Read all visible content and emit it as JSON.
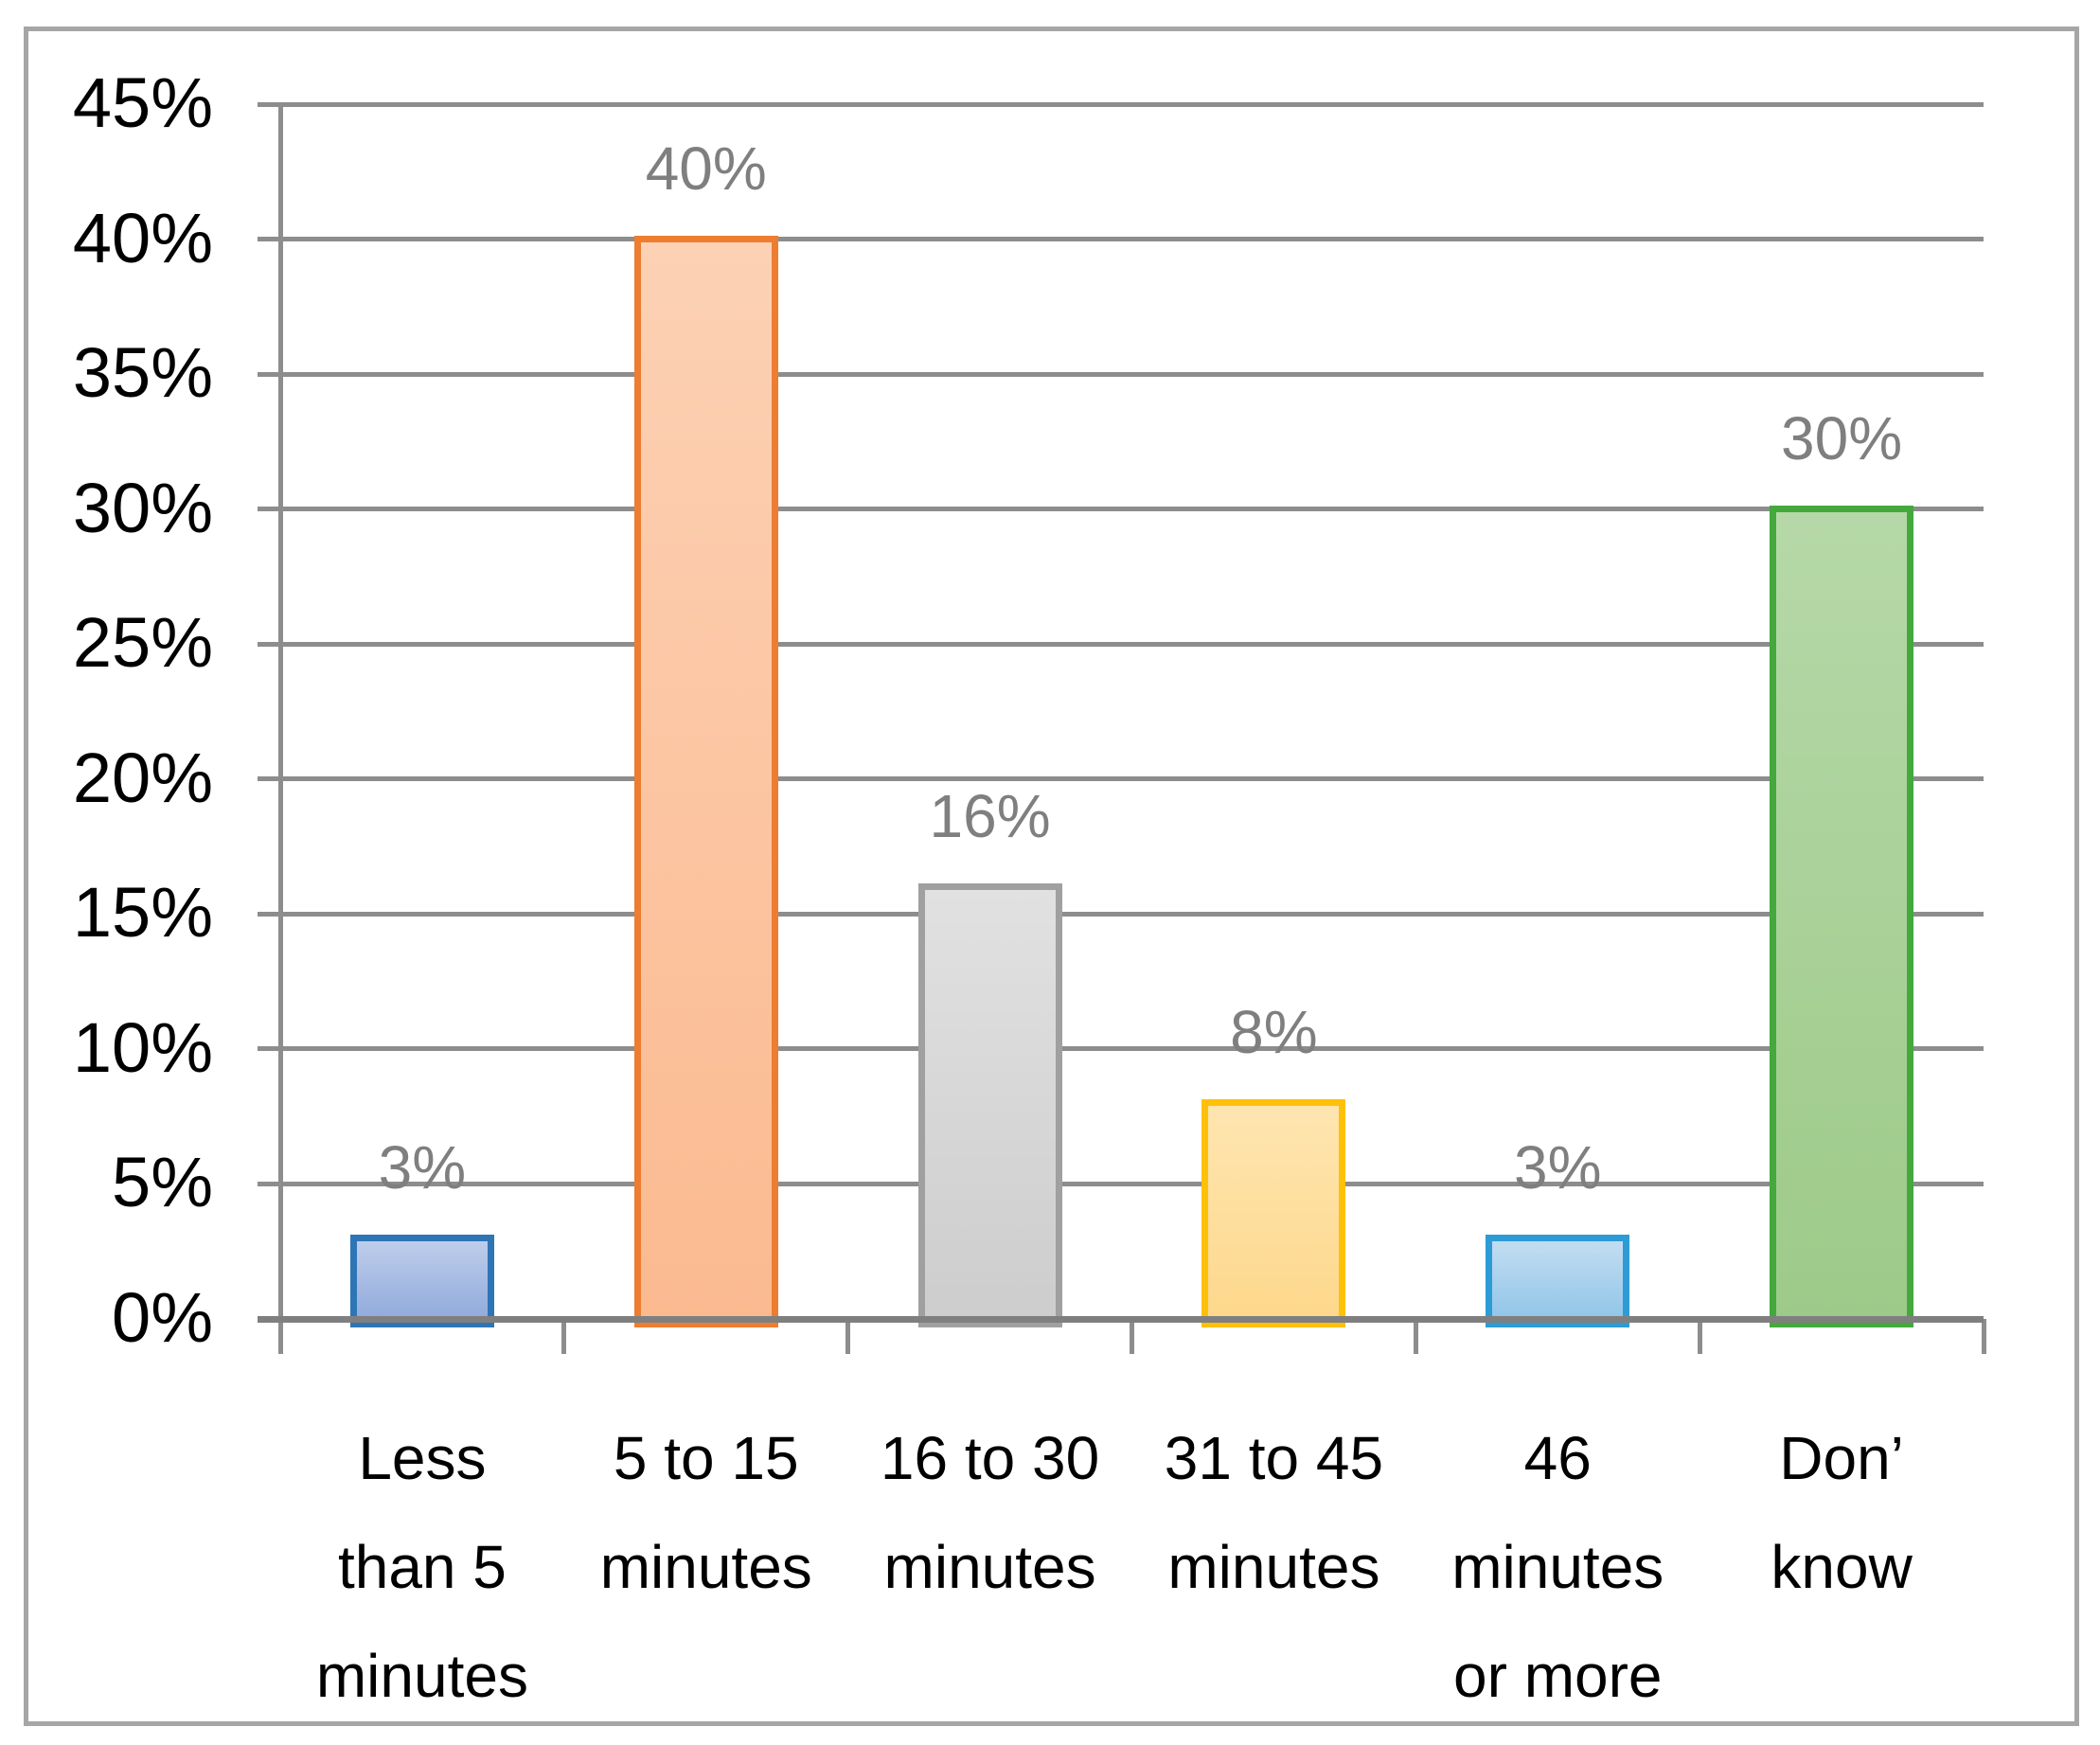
{
  "chart_data": {
    "type": "bar",
    "title": "",
    "xlabel": "",
    "ylabel": "",
    "categories": [
      "Less than 5 minutes",
      "5 to 15 minutes",
      "16 to 30 minutes",
      "31 to 45 minutes",
      "46 minutes or more",
      "Don’ know"
    ],
    "category_lines": [
      [
        "Less",
        "than 5",
        "minutes"
      ],
      [
        "5 to 15",
        "minutes"
      ],
      [
        "16 to 30",
        "minutes"
      ],
      [
        "31 to 45",
        "minutes"
      ],
      [
        "46",
        "minutes",
        "or more"
      ],
      [
        "Don’",
        "know"
      ]
    ],
    "values": [
      3,
      40,
      16,
      8,
      3,
      30
    ],
    "data_labels": [
      "3%",
      "40%",
      "16%",
      "8%",
      "3%",
      "30%"
    ],
    "y_tick_labels": [
      "0%",
      "5%",
      "10%",
      "15%",
      "20%",
      "25%",
      "30%",
      "35%",
      "40%",
      "45%"
    ],
    "ylim": [
      0,
      45
    ],
    "y_step": 5,
    "grid": true,
    "legend": false,
    "bar_styles": [
      {
        "name": "less-than-5-minutes",
        "border": "#2E75B6",
        "fill_top": "#BECDEB",
        "fill_bottom": "#90AADB"
      },
      {
        "name": "5-to-15-minutes",
        "border": "#ED7D31",
        "fill_top": "#FCD1B4",
        "fill_bottom": "#FBBA90"
      },
      {
        "name": "16-to-30-minutes",
        "border": "#A0A0A0",
        "fill_top": "#E1E1E1",
        "fill_bottom": "#CDCDCD"
      },
      {
        "name": "31-to-45-minutes",
        "border": "#FFC008",
        "fill_top": "#FEE5B0",
        "fill_bottom": "#FDD88B"
      },
      {
        "name": "46-minutes-or-more",
        "border": "#2D9BD5",
        "fill_top": "#C3DDF1",
        "fill_bottom": "#8FC5E8"
      },
      {
        "name": "dont-know",
        "border": "#44A93C",
        "fill_top": "#B6D8A8",
        "fill_bottom": "#9DCA89"
      }
    ],
    "colors": {
      "gridline": "#8D8D8D",
      "axis_line": "#8D8D8D",
      "baseline": "#7F7F7F",
      "frame_border": "#A6A6A6",
      "y_label_text": "#000000",
      "category_text": "#000000",
      "data_label_text": "#7F7F7F",
      "background": "#FFFFFF"
    }
  }
}
